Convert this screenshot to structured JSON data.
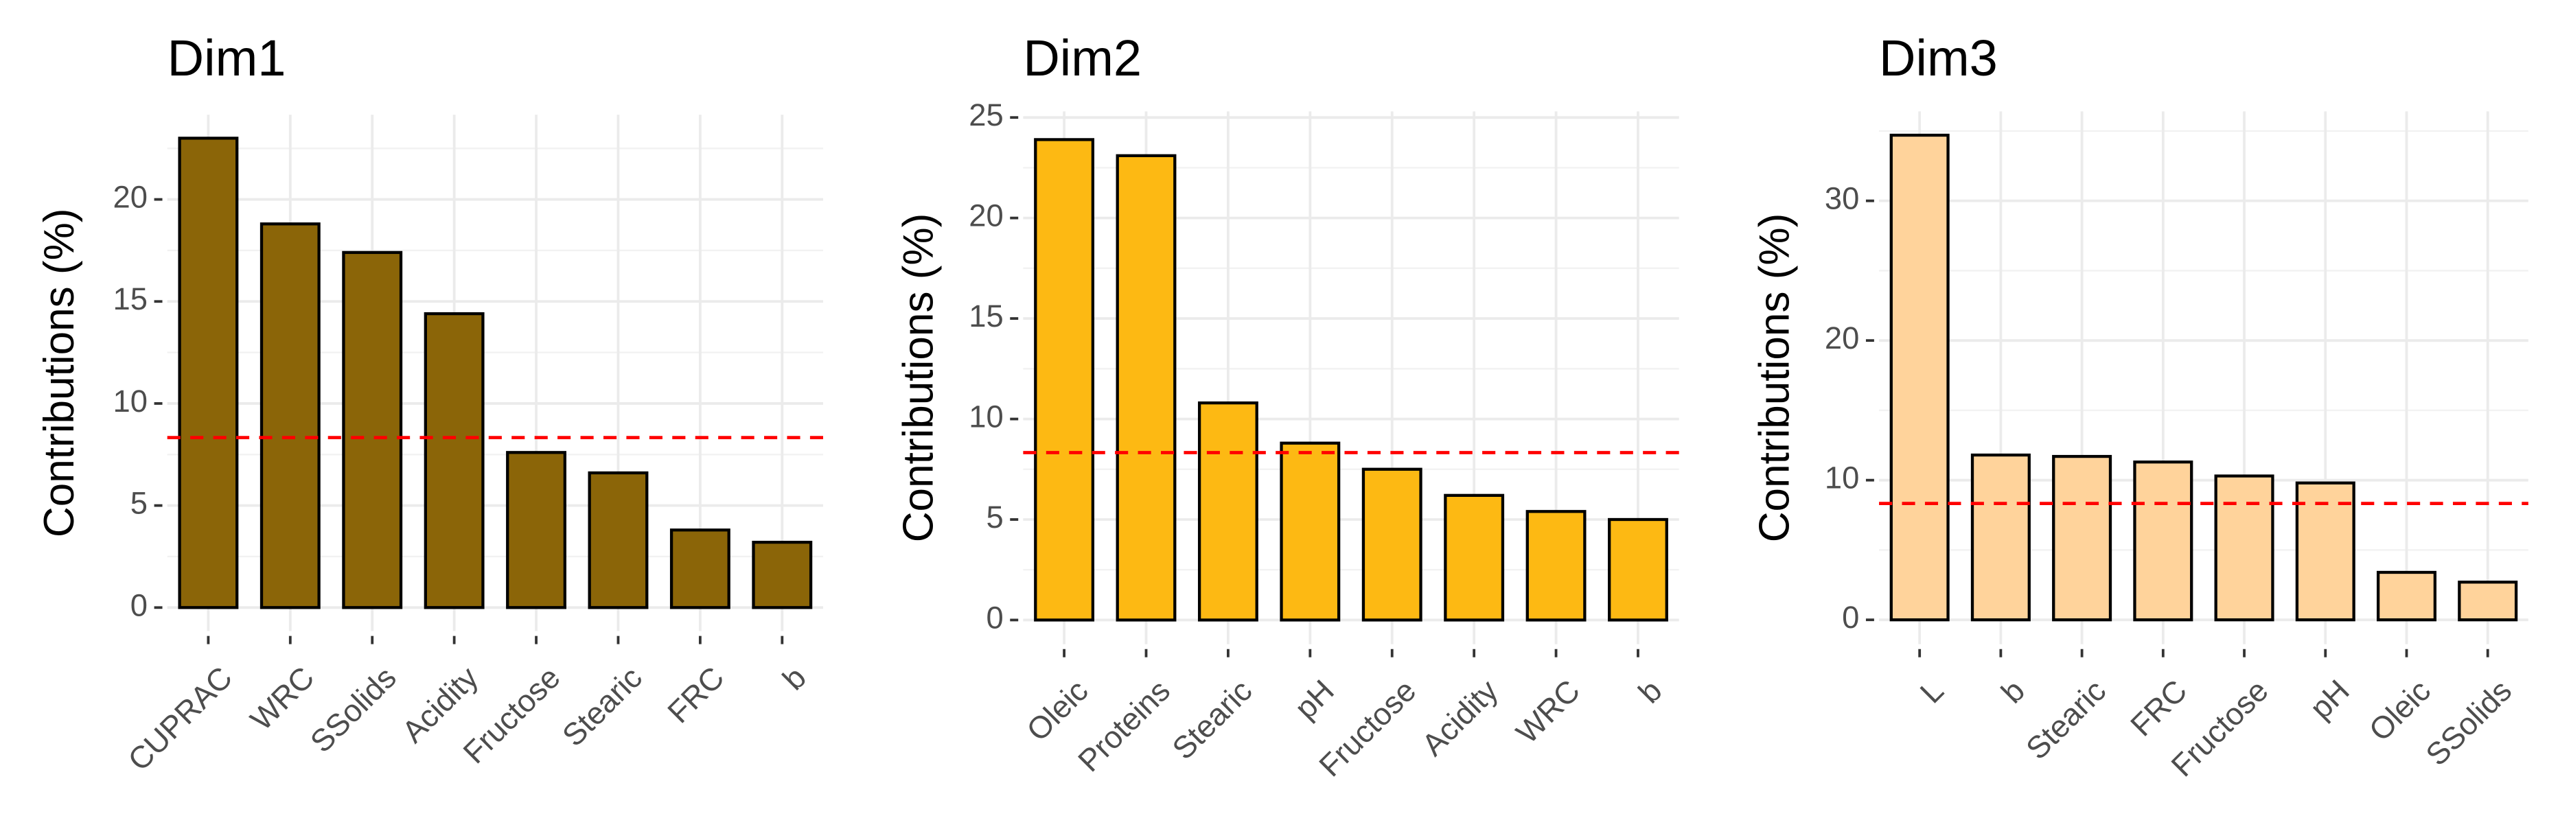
{
  "chart_data": [
    {
      "type": "bar",
      "title": "Dim1",
      "y_label": "Contributions (%)",
      "categories": [
        "CUPRAC",
        "WRC",
        "SSolids",
        "Acidity",
        "Fructose",
        "Stearic",
        "FRC",
        "b"
      ],
      "values": [
        23.0,
        18.8,
        17.4,
        14.4,
        7.6,
        6.6,
        3.8,
        3.2
      ],
      "color": "#8B6508",
      "ylim": [
        -1.15,
        24.15
      ],
      "yticks": [
        0,
        5,
        10,
        15,
        20
      ],
      "reference_line": 8.33,
      "reference_color": "#ff0000",
      "grid": true
    },
    {
      "type": "bar",
      "title": "Dim2",
      "y_label": "Contributions (%)",
      "categories": [
        "Oleic",
        "Proteins",
        "Stearic",
        "pH",
        "Fructose",
        "Acidity",
        "WRC",
        "b"
      ],
      "values": [
        23.9,
        23.1,
        10.8,
        8.8,
        7.5,
        6.2,
        5.4,
        5.0
      ],
      "color": "#FDB913",
      "ylim": [
        -1.2,
        25.3
      ],
      "yticks": [
        0,
        5,
        10,
        15,
        20,
        25
      ],
      "reference_line": 8.33,
      "reference_color": "#ff0000",
      "grid": true
    },
    {
      "type": "bar",
      "title": "Dim3",
      "y_label": "Contributions (%)",
      "categories": [
        "L",
        "b",
        "Stearic",
        "FRC",
        "Fructose",
        "pH",
        "Oleic",
        "SSolids"
      ],
      "values": [
        34.7,
        11.8,
        11.7,
        11.3,
        10.3,
        9.8,
        3.4,
        2.7
      ],
      "color": "#FFD39B",
      "ylim": [
        -1.74,
        36.4
      ],
      "yticks": [
        0,
        10,
        20,
        30
      ],
      "reference_line": 8.33,
      "reference_color": "#ff0000",
      "grid": true
    }
  ]
}
